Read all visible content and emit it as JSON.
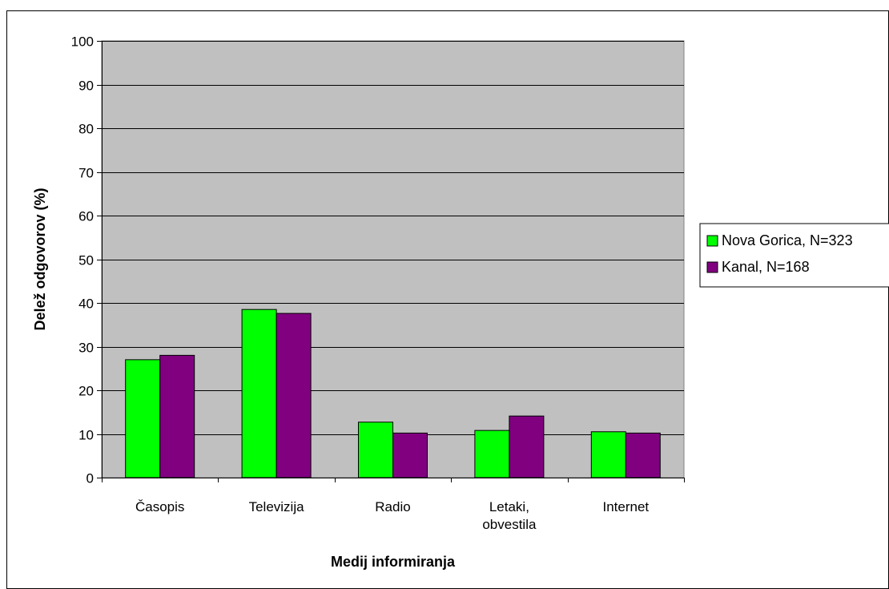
{
  "chart_data": {
    "type": "bar",
    "title": "",
    "xlabel": "Medij informiranja",
    "ylabel": "Delež odgovorov (%)",
    "ylim": [
      0,
      100
    ],
    "yticks": [
      0,
      10,
      20,
      30,
      40,
      50,
      60,
      70,
      80,
      90,
      100
    ],
    "grid": true,
    "legend_position": "right",
    "categories": [
      [
        "Časopis"
      ],
      [
        "Televizija"
      ],
      [
        "Radio"
      ],
      [
        "Letaki,",
        "obvestila"
      ],
      [
        "Internet"
      ]
    ],
    "series": [
      {
        "name": "Nova Gorica, N=323",
        "color": "#00ff00",
        "values": [
          27,
          38.5,
          12.7,
          10.8,
          10.5
        ]
      },
      {
        "name": "Kanal, N=168",
        "color": "#800080",
        "values": [
          28,
          37.6,
          10.2,
          14.1,
          10.2
        ]
      }
    ],
    "plot_background": "#c0c0c0"
  }
}
